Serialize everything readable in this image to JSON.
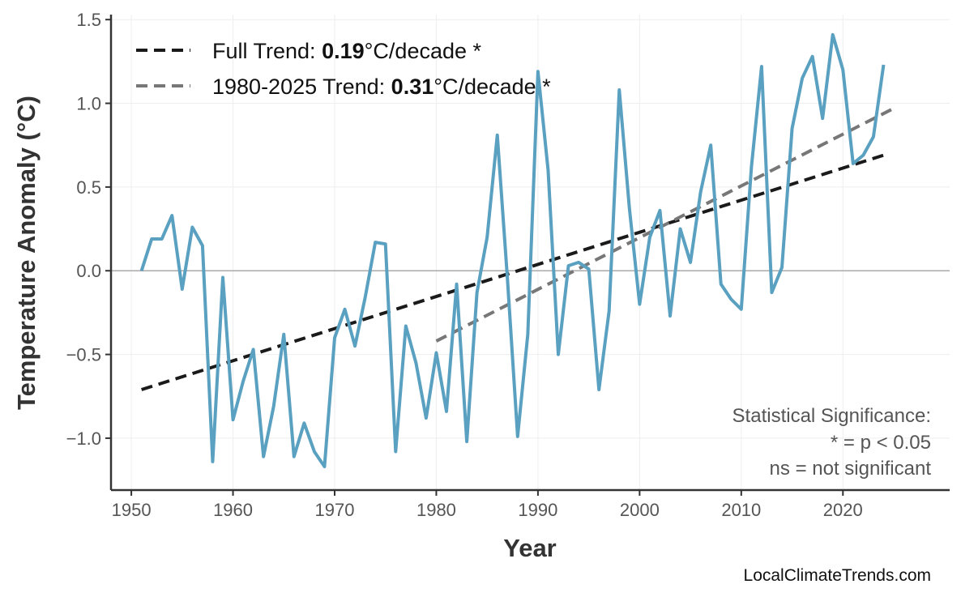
{
  "chart_data": {
    "type": "line",
    "title": "",
    "xlabel": "Year",
    "ylabel": "Temperature Anomaly (°C)",
    "xlim": [
      1948,
      2030.5
    ],
    "ylim": [
      -1.31,
      1.53
    ],
    "grid": true,
    "x_ticks": [
      "1950",
      "1960",
      "1970",
      "1980",
      "1990",
      "2000",
      "2010",
      "2020"
    ],
    "y_ticks": [
      "−1.0",
      "−0.5",
      "0.0",
      "0.5",
      "1.0",
      "1.5"
    ],
    "y_tick_values": [
      -1.0,
      -0.5,
      0.0,
      0.5,
      1.0,
      1.5
    ],
    "x_tick_values": [
      1950,
      1960,
      1970,
      1980,
      1990,
      2000,
      2010,
      2020
    ],
    "legend_placement": "top-left",
    "series": [
      {
        "color": "#5aa0c0",
        "x": [
          1951,
          1952,
          1953,
          1954,
          1955,
          1956,
          1957,
          1958,
          1959,
          1960,
          1961,
          1962,
          1963,
          1964,
          1965,
          1966,
          1967,
          1968,
          1969,
          1970,
          1971,
          1972,
          1973,
          1974,
          1975,
          1976,
          1977,
          1978,
          1979,
          1980,
          1981,
          1982,
          1983,
          1984,
          1985,
          1986,
          1987,
          1988,
          1989,
          1990,
          1991,
          1992,
          1993,
          1994,
          1995,
          1996,
          1997,
          1998,
          1999,
          2000,
          2001,
          2002,
          2003,
          2004,
          2005,
          2006,
          2007,
          2008,
          2009,
          2010,
          2011,
          2012,
          2013,
          2014,
          2015,
          2016,
          2017,
          2018,
          2019,
          2020,
          2021,
          2022,
          2023,
          2024
        ],
        "values": [
          0.0,
          0.19,
          0.19,
          0.33,
          -0.11,
          0.26,
          0.15,
          -1.14,
          -0.04,
          -0.89,
          -0.66,
          -0.47,
          -1.11,
          -0.81,
          -0.38,
          -1.11,
          -0.91,
          -1.08,
          -1.17,
          -0.4,
          -0.23,
          -0.45,
          -0.16,
          0.17,
          0.16,
          -1.08,
          -0.33,
          -0.55,
          -0.88,
          -0.49,
          -0.84,
          -0.08,
          -1.02,
          -0.13,
          0.2,
          0.81,
          -0.05,
          -0.99,
          -0.38,
          1.19,
          0.6,
          -0.5,
          0.03,
          0.05,
          0.01,
          -0.71,
          -0.24,
          1.08,
          0.37,
          -0.2,
          0.2,
          0.36,
          -0.27,
          0.25,
          0.05,
          0.47,
          0.75,
          -0.08,
          -0.17,
          -0.23,
          0.62,
          1.22,
          -0.13,
          0.02,
          0.85,
          1.15,
          1.28,
          0.91,
          1.41,
          1.2,
          0.64,
          0.69,
          0.8,
          1.23
        ]
      }
    ],
    "trends": [
      {
        "label_prefix": "Full Trend: ",
        "value": "0.19",
        "label_suffix": "°C/decade *",
        "color": "#1a1a1a",
        "x": [
          1951,
          2024
        ],
        "values": [
          -0.71,
          0.69
        ]
      },
      {
        "label_prefix": "1980-2025 Trend: ",
        "value": "0.31",
        "label_suffix": "°C/decade *",
        "color": "#777777",
        "x": [
          1980,
          2025
        ],
        "values": [
          -0.42,
          0.97
        ]
      }
    ],
    "annotation": [
      "Statistical Significance:",
      "* = p < 0.05",
      "ns = not significant"
    ]
  },
  "credit": "LocalClimateTrends.com"
}
